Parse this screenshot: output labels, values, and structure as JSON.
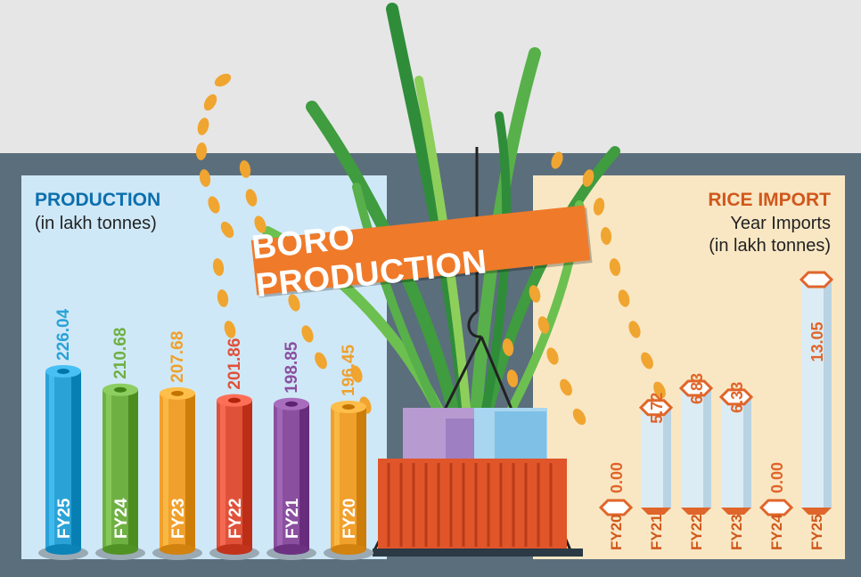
{
  "banner": {
    "title": "BORO PRODUCTION"
  },
  "production": {
    "title": "PRODUCTION",
    "unit": "(in lakh tonnes)"
  },
  "imports": {
    "title": "RICE IMPORT",
    "subheading": "Year Imports",
    "unit": "(in lakh tonnes)"
  },
  "colors": {
    "FY25_production": "#2aa2d6",
    "FY24_production": "#6fb043",
    "FY23_production": "#f0a02c",
    "FY22_production": "#e0513a",
    "FY21_production": "#8a4f9f",
    "FY20_production": "#f0a02c",
    "import_cylinder": "#dcecf5",
    "import_accent": "#e0652a"
  },
  "chart_data": [
    {
      "type": "bar",
      "title": "PRODUCTION",
      "ylabel": "(in lakh tonnes)",
      "categories": [
        "FY25",
        "FY24",
        "FY23",
        "FY22",
        "FY21",
        "FY20"
      ],
      "values": [
        226.04,
        210.68,
        207.68,
        201.86,
        198.85,
        196.45
      ],
      "value_labels": [
        "226.04",
        "210.68",
        "207.68",
        "201.86",
        "198.85",
        "196.45"
      ]
    },
    {
      "type": "bar",
      "title": "RICE IMPORT",
      "ylabel": "(in lakh tonnes)",
      "categories": [
        "FY20",
        "FY21",
        "FY22",
        "FY23",
        "FY24",
        "FY25"
      ],
      "values": [
        0.0,
        5.72,
        6.83,
        6.33,
        0.0,
        13.05
      ],
      "value_labels": [
        "0.00",
        "5.72",
        "6.83",
        "6.33",
        "0.00",
        "13.05"
      ]
    }
  ]
}
